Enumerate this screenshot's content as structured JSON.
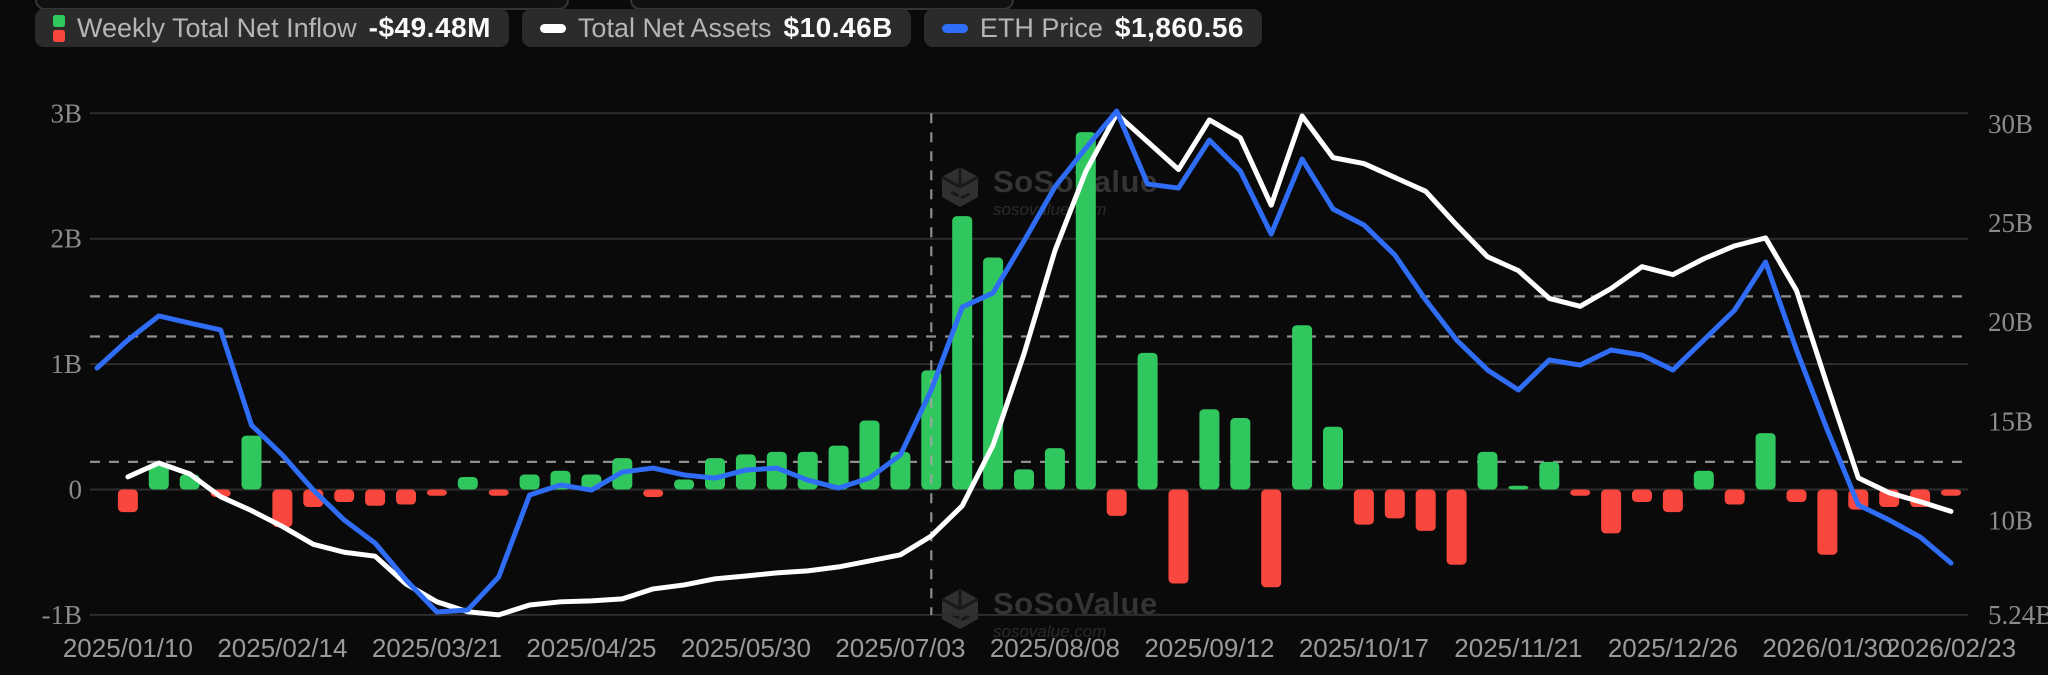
{
  "legend": {
    "items": [
      {
        "label": "Weekly Total Net Inflow",
        "value": "-$49.48M",
        "icon": "inflow-bars-icon"
      },
      {
        "label": "Total Net Assets",
        "value": "$10.46B",
        "icon": "white-dash-icon"
      },
      {
        "label": "ETH Price",
        "value": "$1,860.56",
        "icon": "blue-dash-icon"
      }
    ]
  },
  "watermark": {
    "brand": "SoSoValue",
    "url": "sosovalue.com"
  },
  "colors": {
    "background": "#0a0a0b",
    "pill_background": "#2b2b2b",
    "grid": "#2e2e2e",
    "dashed_reference": "#a6a6a6",
    "inflow_positive": "#31c75f",
    "inflow_negative": "#f9473d",
    "total_net_assets_line": "#ffffff",
    "eth_price_line": "#2f6df6",
    "y_tick_text": "#8b8b8b",
    "x_tick_text": "#9a9a9a"
  },
  "chart_data": {
    "type": "combo",
    "title": "",
    "x_points": 61,
    "x_tick_labels": [
      {
        "index": 1,
        "label": "2025/01/10"
      },
      {
        "index": 6,
        "label": "2025/02/14"
      },
      {
        "index": 11,
        "label": "2025/03/21"
      },
      {
        "index": 16,
        "label": "2025/04/25"
      },
      {
        "index": 21,
        "label": "2025/05/30"
      },
      {
        "index": 26,
        "label": "2025/07/03"
      },
      {
        "index": 31,
        "label": "2025/08/08"
      },
      {
        "index": 36,
        "label": "2025/09/12"
      },
      {
        "index": 41,
        "label": "2025/10/17"
      },
      {
        "index": 46,
        "label": "2025/11/21"
      },
      {
        "index": 51,
        "label": "2025/12/26"
      },
      {
        "index": 56,
        "label": "2026/01/30"
      },
      {
        "index": 60,
        "label": "2026/02/23"
      }
    ],
    "left_axis": {
      "ticks": [
        "3B",
        "2B",
        "1B",
        "0",
        "-1B"
      ],
      "values": [
        3,
        2,
        1,
        0,
        -1
      ],
      "unit": "$B"
    },
    "right_axis": {
      "ticks": [
        "30B",
        "25B",
        "20B",
        "15B",
        "10B",
        "5.24B"
      ],
      "values": [
        30,
        25,
        20,
        15,
        10,
        5.24
      ],
      "unit": "$B"
    },
    "reference_lines_left_axis_values": [
      1.54,
      1.22,
      0.22
    ],
    "vertical_reference_index": 27,
    "legend_position": "top-left",
    "grid": true,
    "series": [
      {
        "name": "Weekly Total Net Inflow",
        "type": "bar",
        "axis": "left",
        "unit": "$B",
        "current_value_label": "-$49.48M",
        "values": [
          null,
          -0.18,
          0.2,
          0.12,
          -0.06,
          0.43,
          -0.3,
          -0.14,
          -0.1,
          -0.13,
          -0.12,
          -0.05,
          0.1,
          -0.05,
          0.12,
          0.15,
          0.12,
          0.25,
          -0.06,
          0.08,
          0.25,
          0.28,
          0.3,
          0.3,
          0.35,
          0.55,
          0.3,
          0.95,
          2.18,
          1.85,
          0.16,
          0.33,
          2.85,
          -0.21,
          1.09,
          -0.75,
          0.64,
          0.57,
          -0.78,
          1.31,
          0.5,
          -0.28,
          -0.23,
          -0.33,
          -0.6,
          0.3,
          0.03,
          0.22,
          -0.05,
          -0.35,
          -0.1,
          -0.18,
          0.15,
          -0.12,
          0.45,
          -0.1,
          -0.52,
          -0.16,
          -0.14,
          -0.14,
          -0.05
        ]
      },
      {
        "name": "Total Net Assets",
        "type": "line",
        "axis": "right",
        "unit": "$B",
        "current_value_label": "$10.46B",
        "values": [
          null,
          12.2,
          12.9,
          12.35,
          11.2,
          10.5,
          9.7,
          8.8,
          8.4,
          8.2,
          6.8,
          5.9,
          5.4,
          5.24,
          5.74,
          5.9,
          5.95,
          6.05,
          6.55,
          6.75,
          7.06,
          7.2,
          7.36,
          7.46,
          7.66,
          7.96,
          8.27,
          9.22,
          10.74,
          13.8,
          18.4,
          23.6,
          27.6,
          30.5,
          29.1,
          27.7,
          30.2,
          29.3,
          25.9,
          30.4,
          28.3,
          28.0,
          27.3,
          26.6,
          24.9,
          23.3,
          22.6,
          21.2,
          20.8,
          21.7,
          22.8,
          22.4,
          23.2,
          23.85,
          24.25,
          21.6,
          16.8,
          12.15,
          11.4,
          10.95,
          10.46
        ]
      },
      {
        "name": "ETH Price",
        "type": "line",
        "axis": "hidden",
        "unit": "$",
        "current_value_label": "$1,860.56",
        "axis_range": [
          1400,
          5000
        ],
        "values": [
          3129,
          3311,
          3467,
          3421,
          3376,
          2757,
          2563,
          2335,
          2140,
          1990,
          1750,
          1542,
          1555,
          1770,
          2303,
          2368,
          2335,
          2452,
          2478,
          2433,
          2413,
          2465,
          2478,
          2400,
          2348,
          2413,
          2563,
          2986,
          3525,
          3617,
          3955,
          4306,
          4559,
          4800,
          4325,
          4299,
          4611,
          4410,
          4000,
          4488,
          4163,
          4059,
          3864,
          3571,
          3311,
          3116,
          2986,
          3181,
          3148,
          3246,
          3213,
          3116,
          3311,
          3506,
          3818,
          3246,
          2725,
          2238,
          2140,
          2030,
          1860.56
        ]
      }
    ]
  }
}
